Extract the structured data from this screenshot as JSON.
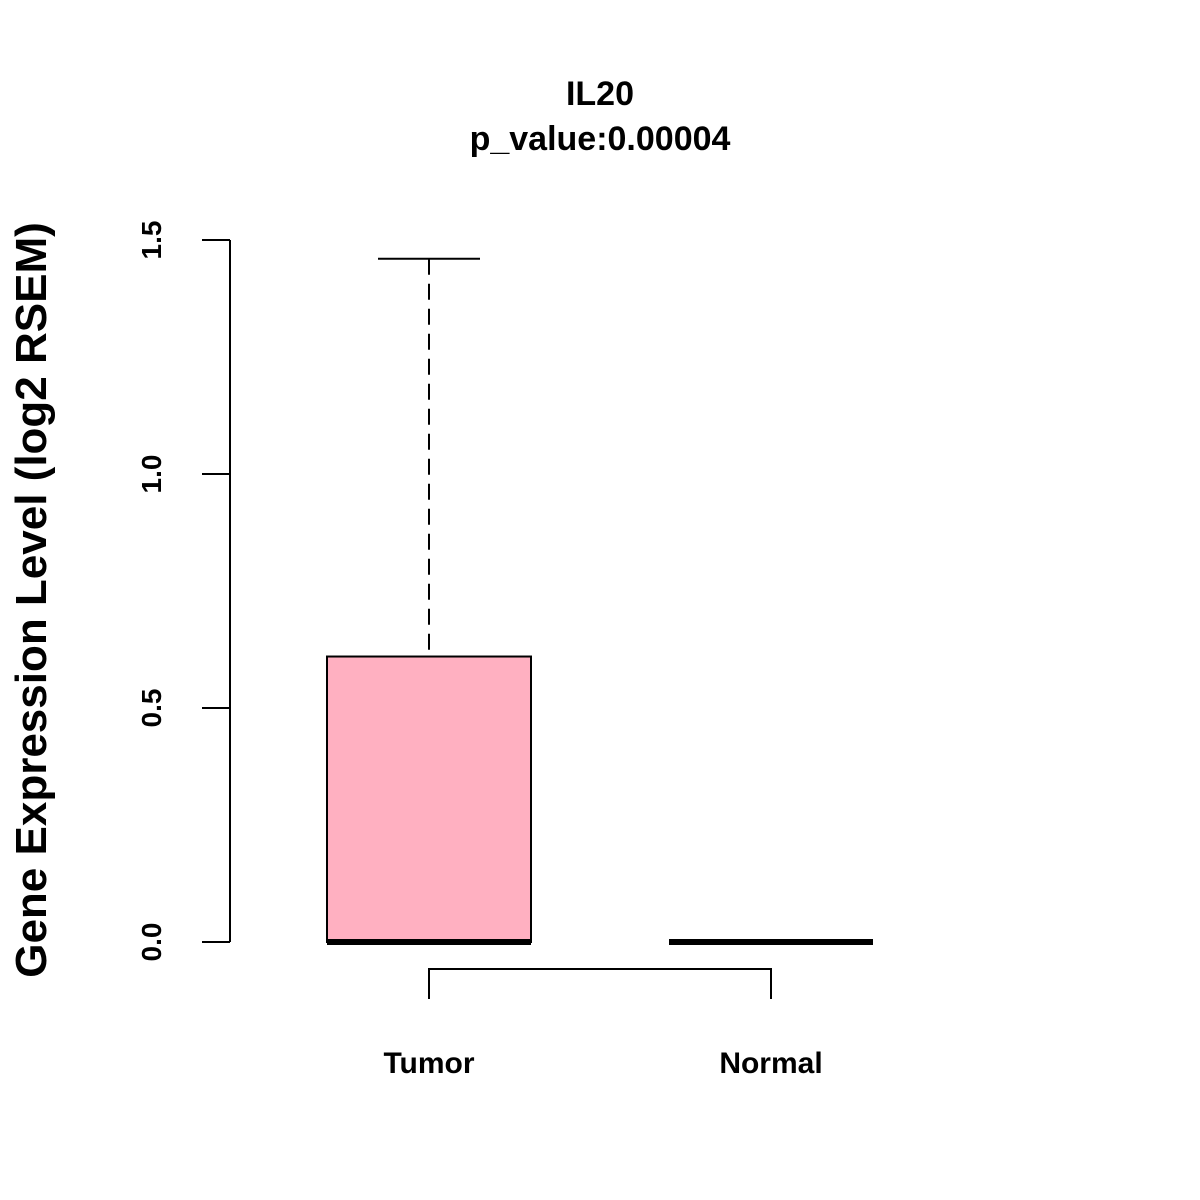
{
  "chart_data": {
    "type": "box",
    "title": "IL20",
    "subtitle": "p_value:0.00004",
    "ylabel": "Gene Expression Level (log2 RSEM)",
    "xlabel": "",
    "ylim": [
      0,
      1.5
    ],
    "yticks": [
      "0.0",
      "0.5",
      "1.0",
      "1.5"
    ],
    "categories": [
      "Tumor",
      "Normal"
    ],
    "boxes": [
      {
        "category": "Tumor",
        "min": 0,
        "q1": 0,
        "median": 0,
        "q3": 0.61,
        "max": 1.46,
        "fill": "#FFB0C1"
      },
      {
        "category": "Normal",
        "min": 0,
        "q1": 0,
        "median": 0,
        "q3": 0,
        "max": 0,
        "fill": "#FFB0C1"
      }
    ],
    "grid": false,
    "comparison_bracket": [
      "Tumor",
      "Normal"
    ]
  }
}
